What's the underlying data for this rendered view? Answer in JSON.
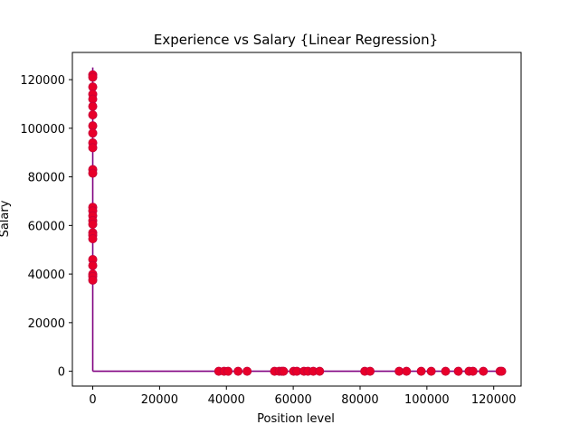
{
  "chart_data": {
    "type": "scatter",
    "title": "Experience vs Salary {Linear Regression}",
    "xlabel": "Position level",
    "ylabel": "Salary",
    "xlim": [
      -6100,
      128200
    ],
    "ylim": [
      -6100,
      131200
    ],
    "xticks": [
      0,
      20000,
      40000,
      60000,
      80000,
      100000,
      120000
    ],
    "yticks": [
      0,
      20000,
      40000,
      60000,
      80000,
      100000,
      120000
    ],
    "grid": false,
    "colors": {
      "points": "#e8002a",
      "point_edge": "#c4003a",
      "line": "#800080"
    },
    "series": [
      {
        "type": "line",
        "segments": [
          {
            "x": [
              0,
              0
            ],
            "y": [
              0,
              125000
            ]
          },
          {
            "x": [
              0,
              122000
            ],
            "y": [
              0,
              0
            ]
          }
        ]
      },
      {
        "type": "scatter",
        "points": [
          {
            "x": 0,
            "y": 122000
          },
          {
            "x": 0,
            "y": 121000
          },
          {
            "x": 0,
            "y": 117000
          },
          {
            "x": 0,
            "y": 114000
          },
          {
            "x": 0,
            "y": 112000
          },
          {
            "x": 0,
            "y": 109000
          },
          {
            "x": 0,
            "y": 105500
          },
          {
            "x": 0,
            "y": 101000
          },
          {
            "x": 0,
            "y": 98000
          },
          {
            "x": 0,
            "y": 94000
          },
          {
            "x": 0,
            "y": 92000
          },
          {
            "x": 0,
            "y": 83000
          },
          {
            "x": 0,
            "y": 81500
          },
          {
            "x": 0,
            "y": 67500
          },
          {
            "x": 0,
            "y": 66000
          },
          {
            "x": 0,
            "y": 64000
          },
          {
            "x": 0,
            "y": 62000
          },
          {
            "x": 0,
            "y": 60500
          },
          {
            "x": 0,
            "y": 57000
          },
          {
            "x": 0,
            "y": 56000
          },
          {
            "x": 0,
            "y": 54500
          },
          {
            "x": 0,
            "y": 46000
          },
          {
            "x": 0,
            "y": 43500
          },
          {
            "x": 0,
            "y": 40000
          },
          {
            "x": 0,
            "y": 39000
          },
          {
            "x": 0,
            "y": 37500
          },
          {
            "x": 37700,
            "y": 0
          },
          {
            "x": 39300,
            "y": 0
          },
          {
            "x": 40500,
            "y": 0
          },
          {
            "x": 43500,
            "y": 0
          },
          {
            "x": 46200,
            "y": 0
          },
          {
            "x": 54400,
            "y": 0
          },
          {
            "x": 55800,
            "y": 0
          },
          {
            "x": 56600,
            "y": 0
          },
          {
            "x": 57100,
            "y": 0
          },
          {
            "x": 60100,
            "y": 0
          },
          {
            "x": 61100,
            "y": 0
          },
          {
            "x": 63200,
            "y": 0
          },
          {
            "x": 64400,
            "y": 0
          },
          {
            "x": 66000,
            "y": 0
          },
          {
            "x": 67900,
            "y": 0
          },
          {
            "x": 81400,
            "y": 0
          },
          {
            "x": 83000,
            "y": 0
          },
          {
            "x": 91700,
            "y": 0
          },
          {
            "x": 93900,
            "y": 0
          },
          {
            "x": 98300,
            "y": 0
          },
          {
            "x": 101300,
            "y": 0
          },
          {
            "x": 105600,
            "y": 0
          },
          {
            "x": 109400,
            "y": 0
          },
          {
            "x": 112600,
            "y": 0
          },
          {
            "x": 113800,
            "y": 0
          },
          {
            "x": 116900,
            "y": 0
          },
          {
            "x": 121900,
            "y": 0
          },
          {
            "x": 122400,
            "y": 0
          }
        ]
      }
    ]
  }
}
